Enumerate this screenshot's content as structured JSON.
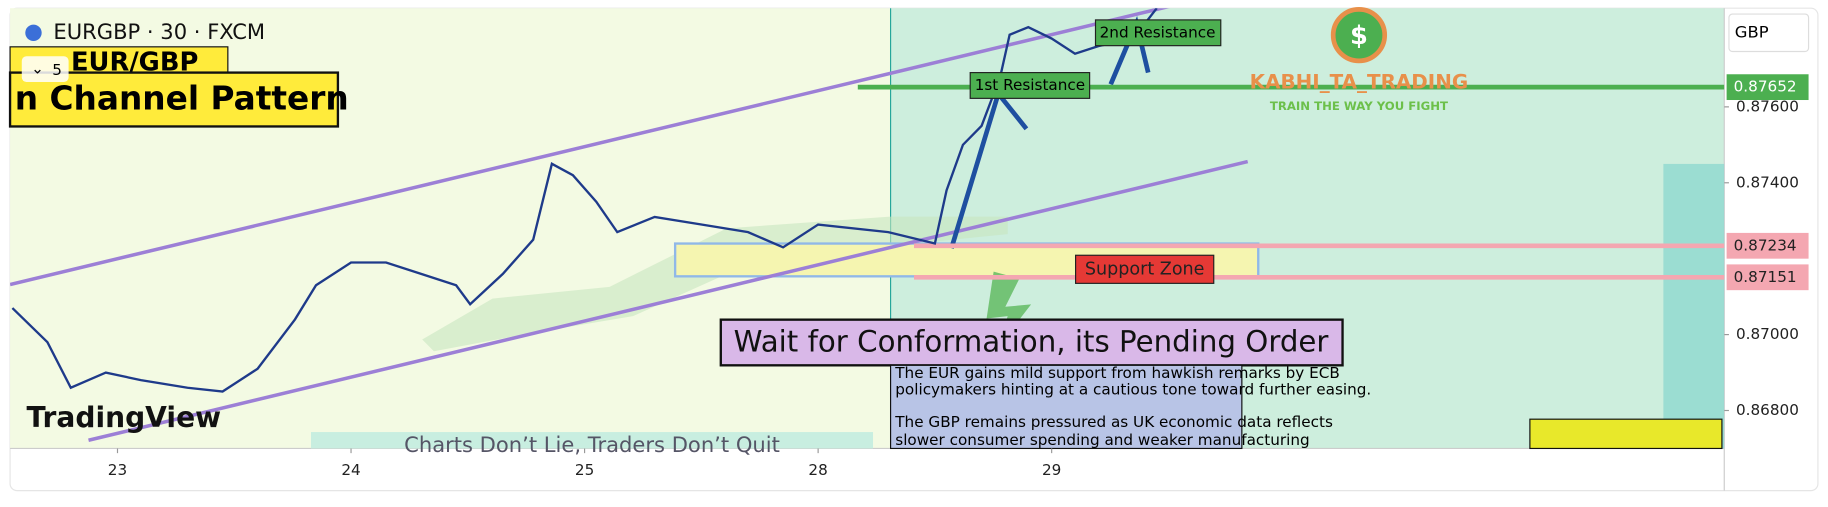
{
  "header": {
    "symbol": "EURGBP · 30 · FXCM",
    "interval_menu": "5",
    "pair_label": "EUR/GBP",
    "pattern_label": "n Channel Pattern",
    "currency": "GBP"
  },
  "annotations": {
    "first_resistance": "1st Resistance",
    "second_resistance": "2nd Resistance",
    "support_zone": "Support  Zone",
    "wait": "Wait for Conformation, its Pending Order",
    "news": [
      "The EUR gains mild support from hawkish remarks by ECB",
      "policymakers hinting at a cautious tone toward further easing.",
      "The GBP remains pressured as UK economic data reflects",
      "slower consumer spending and weaker manufacturing"
    ],
    "brand": "KABHI_TA_TRADING",
    "brand_tagline": "TRAIN THE WAY YOU FIGHT",
    "motto": "Charts Don’t Lie, Traders Don’t Quit",
    "logo": "TradingView"
  },
  "chart_data": {
    "type": "line",
    "color": "#1e3a8a",
    "x": [
      -0.45,
      -0.3,
      -0.2,
      -0.05,
      0.1,
      0.3,
      0.45,
      0.6,
      0.76,
      0.85,
      1.0,
      1.15,
      1.3,
      1.45,
      1.51,
      1.65,
      1.78,
      1.86,
      1.95,
      2.05,
      2.14,
      2.3,
      2.5,
      2.7,
      2.85,
      3.0,
      3.3,
      3.5,
      3.55,
      3.62,
      3.7,
      3.78,
      3.82,
      3.9,
      4.0,
      4.1,
      4.2,
      4.35,
      4.45
    ],
    "values": [
      0.8707,
      0.8698,
      0.8686,
      0.869,
      0.8688,
      0.8686,
      0.8685,
      0.8691,
      0.8704,
      0.8713,
      0.8719,
      0.8719,
      0.8716,
      0.8713,
      0.8708,
      0.8716,
      0.8725,
      0.8745,
      0.8742,
      0.8735,
      0.8727,
      0.8731,
      0.8729,
      0.8727,
      0.8723,
      0.8729,
      0.8727,
      0.8724,
      0.8738,
      0.875,
      0.8755,
      0.8768,
      0.8779,
      0.8781,
      0.8778,
      0.8774,
      0.8776,
      0.8778,
      0.8786
    ],
    "xlim": [
      -0.46,
      6.88
    ],
    "xticks": [
      {
        "value": 0,
        "label": "23"
      },
      {
        "value": 1,
        "label": "24"
      },
      {
        "value": 2,
        "label": "25"
      },
      {
        "value": 3,
        "label": "28"
      },
      {
        "value": 4,
        "label": "29"
      }
    ],
    "ylim": [
      0.867,
      0.8786
    ],
    "yticks": [
      {
        "value": 0.876,
        "label": "0.87600"
      },
      {
        "value": 0.874,
        "label": "0.87400"
      },
      {
        "value": 0.87,
        "label": "0.87000"
      },
      {
        "value": 0.868,
        "label": "0.86800"
      }
    ],
    "levels": [
      {
        "value": 0.87652,
        "color": "#4caf50"
      },
      {
        "value": 0.87234,
        "color": "#f4a7b1"
      },
      {
        "value": 0.87151,
        "color": "#f4a7b1"
      }
    ]
  }
}
